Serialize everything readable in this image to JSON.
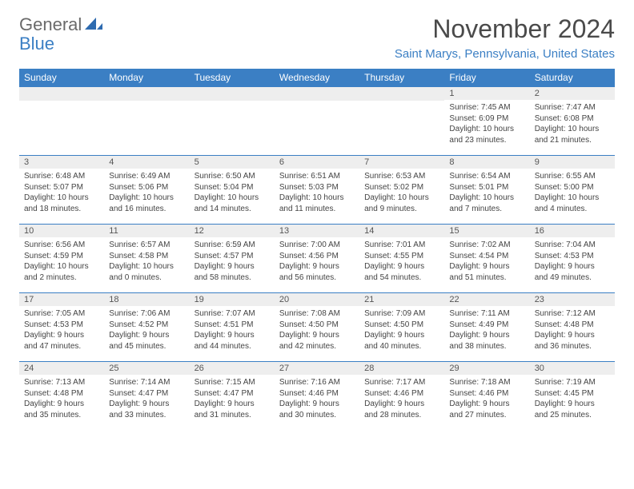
{
  "logo": {
    "part1": "General",
    "part2": "Blue"
  },
  "title": "November 2024",
  "location": "Saint Marys, Pennsylvania, United States",
  "colors": {
    "header_bg": "#3b7fc4",
    "header_fg": "#ffffff",
    "daynum_bg": "#eeeeee",
    "border": "#3b7fc4",
    "text": "#444444",
    "title": "#4a4a4a"
  },
  "weekdays": [
    "Sunday",
    "Monday",
    "Tuesday",
    "Wednesday",
    "Thursday",
    "Friday",
    "Saturday"
  ],
  "weeks": [
    [
      null,
      null,
      null,
      null,
      null,
      {
        "n": "1",
        "sr": "Sunrise: 7:45 AM",
        "ss": "Sunset: 6:09 PM",
        "d1": "Daylight: 10 hours",
        "d2": "and 23 minutes."
      },
      {
        "n": "2",
        "sr": "Sunrise: 7:47 AM",
        "ss": "Sunset: 6:08 PM",
        "d1": "Daylight: 10 hours",
        "d2": "and 21 minutes."
      }
    ],
    [
      {
        "n": "3",
        "sr": "Sunrise: 6:48 AM",
        "ss": "Sunset: 5:07 PM",
        "d1": "Daylight: 10 hours",
        "d2": "and 18 minutes."
      },
      {
        "n": "4",
        "sr": "Sunrise: 6:49 AM",
        "ss": "Sunset: 5:06 PM",
        "d1": "Daylight: 10 hours",
        "d2": "and 16 minutes."
      },
      {
        "n": "5",
        "sr": "Sunrise: 6:50 AM",
        "ss": "Sunset: 5:04 PM",
        "d1": "Daylight: 10 hours",
        "d2": "and 14 minutes."
      },
      {
        "n": "6",
        "sr": "Sunrise: 6:51 AM",
        "ss": "Sunset: 5:03 PM",
        "d1": "Daylight: 10 hours",
        "d2": "and 11 minutes."
      },
      {
        "n": "7",
        "sr": "Sunrise: 6:53 AM",
        "ss": "Sunset: 5:02 PM",
        "d1": "Daylight: 10 hours",
        "d2": "and 9 minutes."
      },
      {
        "n": "8",
        "sr": "Sunrise: 6:54 AM",
        "ss": "Sunset: 5:01 PM",
        "d1": "Daylight: 10 hours",
        "d2": "and 7 minutes."
      },
      {
        "n": "9",
        "sr": "Sunrise: 6:55 AM",
        "ss": "Sunset: 5:00 PM",
        "d1": "Daylight: 10 hours",
        "d2": "and 4 minutes."
      }
    ],
    [
      {
        "n": "10",
        "sr": "Sunrise: 6:56 AM",
        "ss": "Sunset: 4:59 PM",
        "d1": "Daylight: 10 hours",
        "d2": "and 2 minutes."
      },
      {
        "n": "11",
        "sr": "Sunrise: 6:57 AM",
        "ss": "Sunset: 4:58 PM",
        "d1": "Daylight: 10 hours",
        "d2": "and 0 minutes."
      },
      {
        "n": "12",
        "sr": "Sunrise: 6:59 AM",
        "ss": "Sunset: 4:57 PM",
        "d1": "Daylight: 9 hours",
        "d2": "and 58 minutes."
      },
      {
        "n": "13",
        "sr": "Sunrise: 7:00 AM",
        "ss": "Sunset: 4:56 PM",
        "d1": "Daylight: 9 hours",
        "d2": "and 56 minutes."
      },
      {
        "n": "14",
        "sr": "Sunrise: 7:01 AM",
        "ss": "Sunset: 4:55 PM",
        "d1": "Daylight: 9 hours",
        "d2": "and 54 minutes."
      },
      {
        "n": "15",
        "sr": "Sunrise: 7:02 AM",
        "ss": "Sunset: 4:54 PM",
        "d1": "Daylight: 9 hours",
        "d2": "and 51 minutes."
      },
      {
        "n": "16",
        "sr": "Sunrise: 7:04 AM",
        "ss": "Sunset: 4:53 PM",
        "d1": "Daylight: 9 hours",
        "d2": "and 49 minutes."
      }
    ],
    [
      {
        "n": "17",
        "sr": "Sunrise: 7:05 AM",
        "ss": "Sunset: 4:53 PM",
        "d1": "Daylight: 9 hours",
        "d2": "and 47 minutes."
      },
      {
        "n": "18",
        "sr": "Sunrise: 7:06 AM",
        "ss": "Sunset: 4:52 PM",
        "d1": "Daylight: 9 hours",
        "d2": "and 45 minutes."
      },
      {
        "n": "19",
        "sr": "Sunrise: 7:07 AM",
        "ss": "Sunset: 4:51 PM",
        "d1": "Daylight: 9 hours",
        "d2": "and 44 minutes."
      },
      {
        "n": "20",
        "sr": "Sunrise: 7:08 AM",
        "ss": "Sunset: 4:50 PM",
        "d1": "Daylight: 9 hours",
        "d2": "and 42 minutes."
      },
      {
        "n": "21",
        "sr": "Sunrise: 7:09 AM",
        "ss": "Sunset: 4:50 PM",
        "d1": "Daylight: 9 hours",
        "d2": "and 40 minutes."
      },
      {
        "n": "22",
        "sr": "Sunrise: 7:11 AM",
        "ss": "Sunset: 4:49 PM",
        "d1": "Daylight: 9 hours",
        "d2": "and 38 minutes."
      },
      {
        "n": "23",
        "sr": "Sunrise: 7:12 AM",
        "ss": "Sunset: 4:48 PM",
        "d1": "Daylight: 9 hours",
        "d2": "and 36 minutes."
      }
    ],
    [
      {
        "n": "24",
        "sr": "Sunrise: 7:13 AM",
        "ss": "Sunset: 4:48 PM",
        "d1": "Daylight: 9 hours",
        "d2": "and 35 minutes."
      },
      {
        "n": "25",
        "sr": "Sunrise: 7:14 AM",
        "ss": "Sunset: 4:47 PM",
        "d1": "Daylight: 9 hours",
        "d2": "and 33 minutes."
      },
      {
        "n": "26",
        "sr": "Sunrise: 7:15 AM",
        "ss": "Sunset: 4:47 PM",
        "d1": "Daylight: 9 hours",
        "d2": "and 31 minutes."
      },
      {
        "n": "27",
        "sr": "Sunrise: 7:16 AM",
        "ss": "Sunset: 4:46 PM",
        "d1": "Daylight: 9 hours",
        "d2": "and 30 minutes."
      },
      {
        "n": "28",
        "sr": "Sunrise: 7:17 AM",
        "ss": "Sunset: 4:46 PM",
        "d1": "Daylight: 9 hours",
        "d2": "and 28 minutes."
      },
      {
        "n": "29",
        "sr": "Sunrise: 7:18 AM",
        "ss": "Sunset: 4:46 PM",
        "d1": "Daylight: 9 hours",
        "d2": "and 27 minutes."
      },
      {
        "n": "30",
        "sr": "Sunrise: 7:19 AM",
        "ss": "Sunset: 4:45 PM",
        "d1": "Daylight: 9 hours",
        "d2": "and 25 minutes."
      }
    ]
  ]
}
